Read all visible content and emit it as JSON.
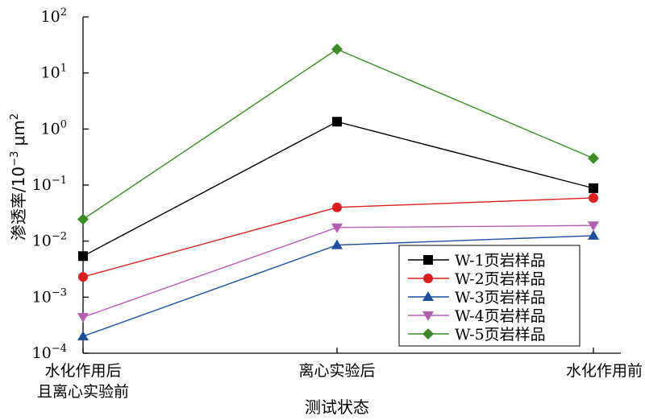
{
  "chart_data": {
    "type": "line",
    "y_scale": "log",
    "ylim": [
      0.0001,
      100
    ],
    "yticks": [
      {
        "value": 0.0001,
        "base": "10",
        "exp": "−4"
      },
      {
        "value": 0.001,
        "base": "10",
        "exp": "−3"
      },
      {
        "value": 0.01,
        "base": "10",
        "exp": "−2"
      },
      {
        "value": 0.1,
        "base": "10",
        "exp": "−1"
      },
      {
        "value": 1,
        "base": "10",
        "exp": "0"
      },
      {
        "value": 10,
        "base": "10",
        "exp": "1"
      },
      {
        "value": 100,
        "base": "10",
        "exp": "2"
      }
    ],
    "categories": [
      [
        "水化作用后",
        "且离心实验前"
      ],
      [
        "离心实验后"
      ],
      [
        "水化作用前"
      ]
    ],
    "xlabel": "测试状态",
    "ylabel_main": "渗透率/10",
    "ylabel_exp": "−3",
    "ylabel_unit": " μm",
    "ylabel_unit_exp": "2",
    "legend_position": "bottom-right",
    "series": [
      {
        "name": "W-1页岩样品",
        "color": "#000000",
        "marker": "square",
        "values": [
          0.0054,
          1.35,
          0.088
        ]
      },
      {
        "name": "W-2页岩样品",
        "color": "#d81e1e",
        "marker": "circle",
        "values": [
          0.0023,
          0.04,
          0.059
        ]
      },
      {
        "name": "W-3页岩样品",
        "color": "#1f4e9c",
        "marker": "triangle-up",
        "values": [
          0.0002,
          0.0085,
          0.0125
        ]
      },
      {
        "name": "W-4页岩样品",
        "color": "#b35fb0",
        "marker": "triangle-down",
        "values": [
          0.00044,
          0.0175,
          0.019
        ]
      },
      {
        "name": "W-5页岩样品",
        "color": "#3e8a28",
        "marker": "diamond",
        "values": [
          0.0245,
          26.5,
          0.3
        ]
      }
    ]
  }
}
